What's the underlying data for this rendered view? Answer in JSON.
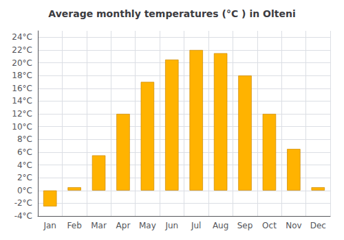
{
  "chart_data": {
    "type": "bar",
    "title": "Average monthly temperatures (°C ) in Olteni",
    "categories": [
      "Jan",
      "Feb",
      "Mar",
      "Apr",
      "May",
      "Jun",
      "Jul",
      "Aug",
      "Sep",
      "Oct",
      "Nov",
      "Dec"
    ],
    "values": [
      -2.5,
      0.5,
      5.5,
      12.0,
      17.0,
      20.5,
      22.0,
      21.5,
      18.0,
      12.0,
      6.5,
      0.5
    ],
    "color": "#FFB300",
    "ylim": [
      -4,
      25
    ],
    "yticks": [
      {
        "value": -4,
        "label": "-4°C"
      },
      {
        "value": -2,
        "label": "-2°C"
      },
      {
        "value": 0,
        "label": "0°C"
      },
      {
        "value": 2,
        "label": "2°C"
      },
      {
        "value": 4,
        "label": "4°C"
      },
      {
        "value": 6,
        "label": "6°C"
      },
      {
        "value": 8,
        "label": "8°C"
      },
      {
        "value": 10,
        "label": "10°C"
      },
      {
        "value": 12,
        "label": "12°C"
      },
      {
        "value": 14,
        "label": "14°C"
      },
      {
        "value": 16,
        "label": "16°C"
      },
      {
        "value": 18,
        "label": "18°C"
      },
      {
        "value": 20,
        "label": "20°C"
      },
      {
        "value": 22,
        "label": "22°C"
      },
      {
        "value": 24,
        "label": "24°C"
      }
    ],
    "grid": true
  }
}
